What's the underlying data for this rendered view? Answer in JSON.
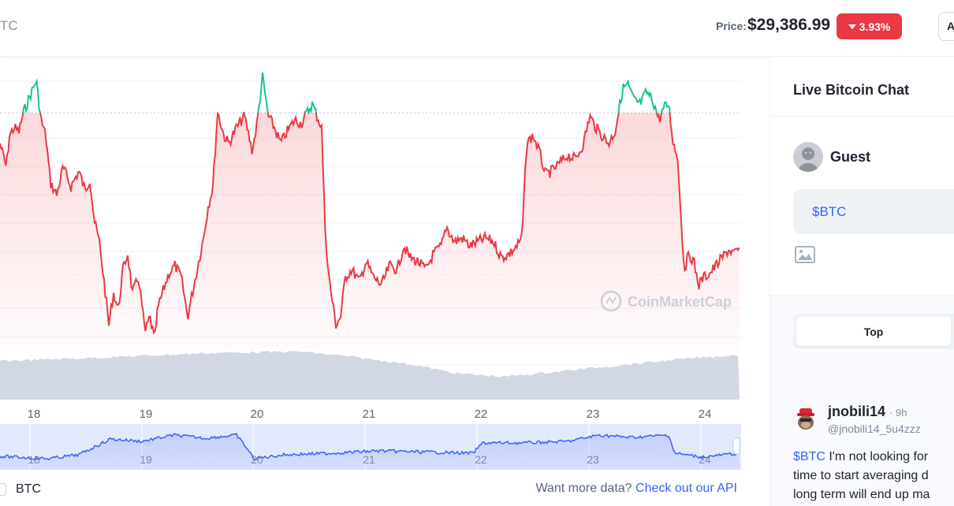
{
  "header": {
    "breadcrumb_fragment": "TC",
    "price_label": "Price:",
    "price_value": "$29,386.99",
    "change": "3.93%",
    "change_color": "#ea3943",
    "add_button_fragment": "A"
  },
  "chart": {
    "watermark": "CoinMarketCap",
    "x_labels": [
      "18",
      "19",
      "20",
      "21",
      "22",
      "23",
      "24"
    ],
    "navigator_labels": [
      "18",
      "19",
      "20",
      "21",
      "22",
      "23",
      "24"
    ],
    "up_color": "#16c784",
    "down_color": "#ea3943",
    "legend_label": "BTC",
    "more_data_text": "Want more data?",
    "more_data_link": "Check out our API"
  },
  "chat": {
    "title": "Live Bitcoin Chat",
    "guest_name": "Guest",
    "compose_text": "$BTC",
    "tab_top": "Top",
    "post": {
      "username": "jnobili14",
      "time": "· 9h",
      "handle": "@jnobili14_5u4zzz",
      "tag": "$BTC",
      "line1": " I'm not looking for",
      "line2": "time to start averaging d",
      "line3": "long term will end up ma"
    }
  }
}
